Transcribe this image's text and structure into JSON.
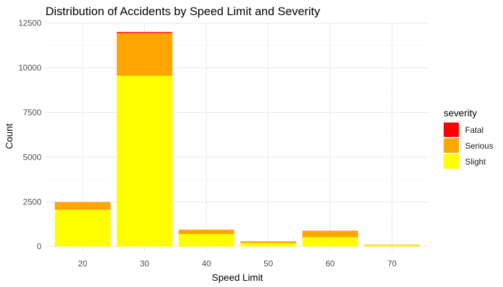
{
  "chart_data": {
    "type": "bar",
    "stacked": true,
    "title": "Distribution of Accidents by Speed Limit and Severity",
    "xlabel": "Speed Limit",
    "ylabel": "Count",
    "categories": [
      "20",
      "30",
      "40",
      "50",
      "60",
      "70"
    ],
    "ylim": [
      0,
      12500
    ],
    "yticks": [
      0,
      2500,
      5000,
      7500,
      10000,
      12500
    ],
    "ytick_labels": [
      "0",
      "2500",
      "5000",
      "7500",
      "10000",
      "12500"
    ],
    "series": [
      {
        "name": "Slight",
        "color": "#FFFF00",
        "values": [
          2060,
          9560,
          700,
          190,
          520,
          70
        ]
      },
      {
        "name": "Serious",
        "color": "#FFA500",
        "values": [
          420,
          2380,
          230,
          100,
          350,
          30
        ]
      },
      {
        "name": "Fatal",
        "color": "#FF0000",
        "values": [
          5,
          60,
          8,
          2,
          10,
          1
        ]
      }
    ],
    "legend": {
      "title": "severity",
      "position": "right",
      "items": [
        "Fatal",
        "Serious",
        "Slight"
      ]
    },
    "grid": true
  }
}
